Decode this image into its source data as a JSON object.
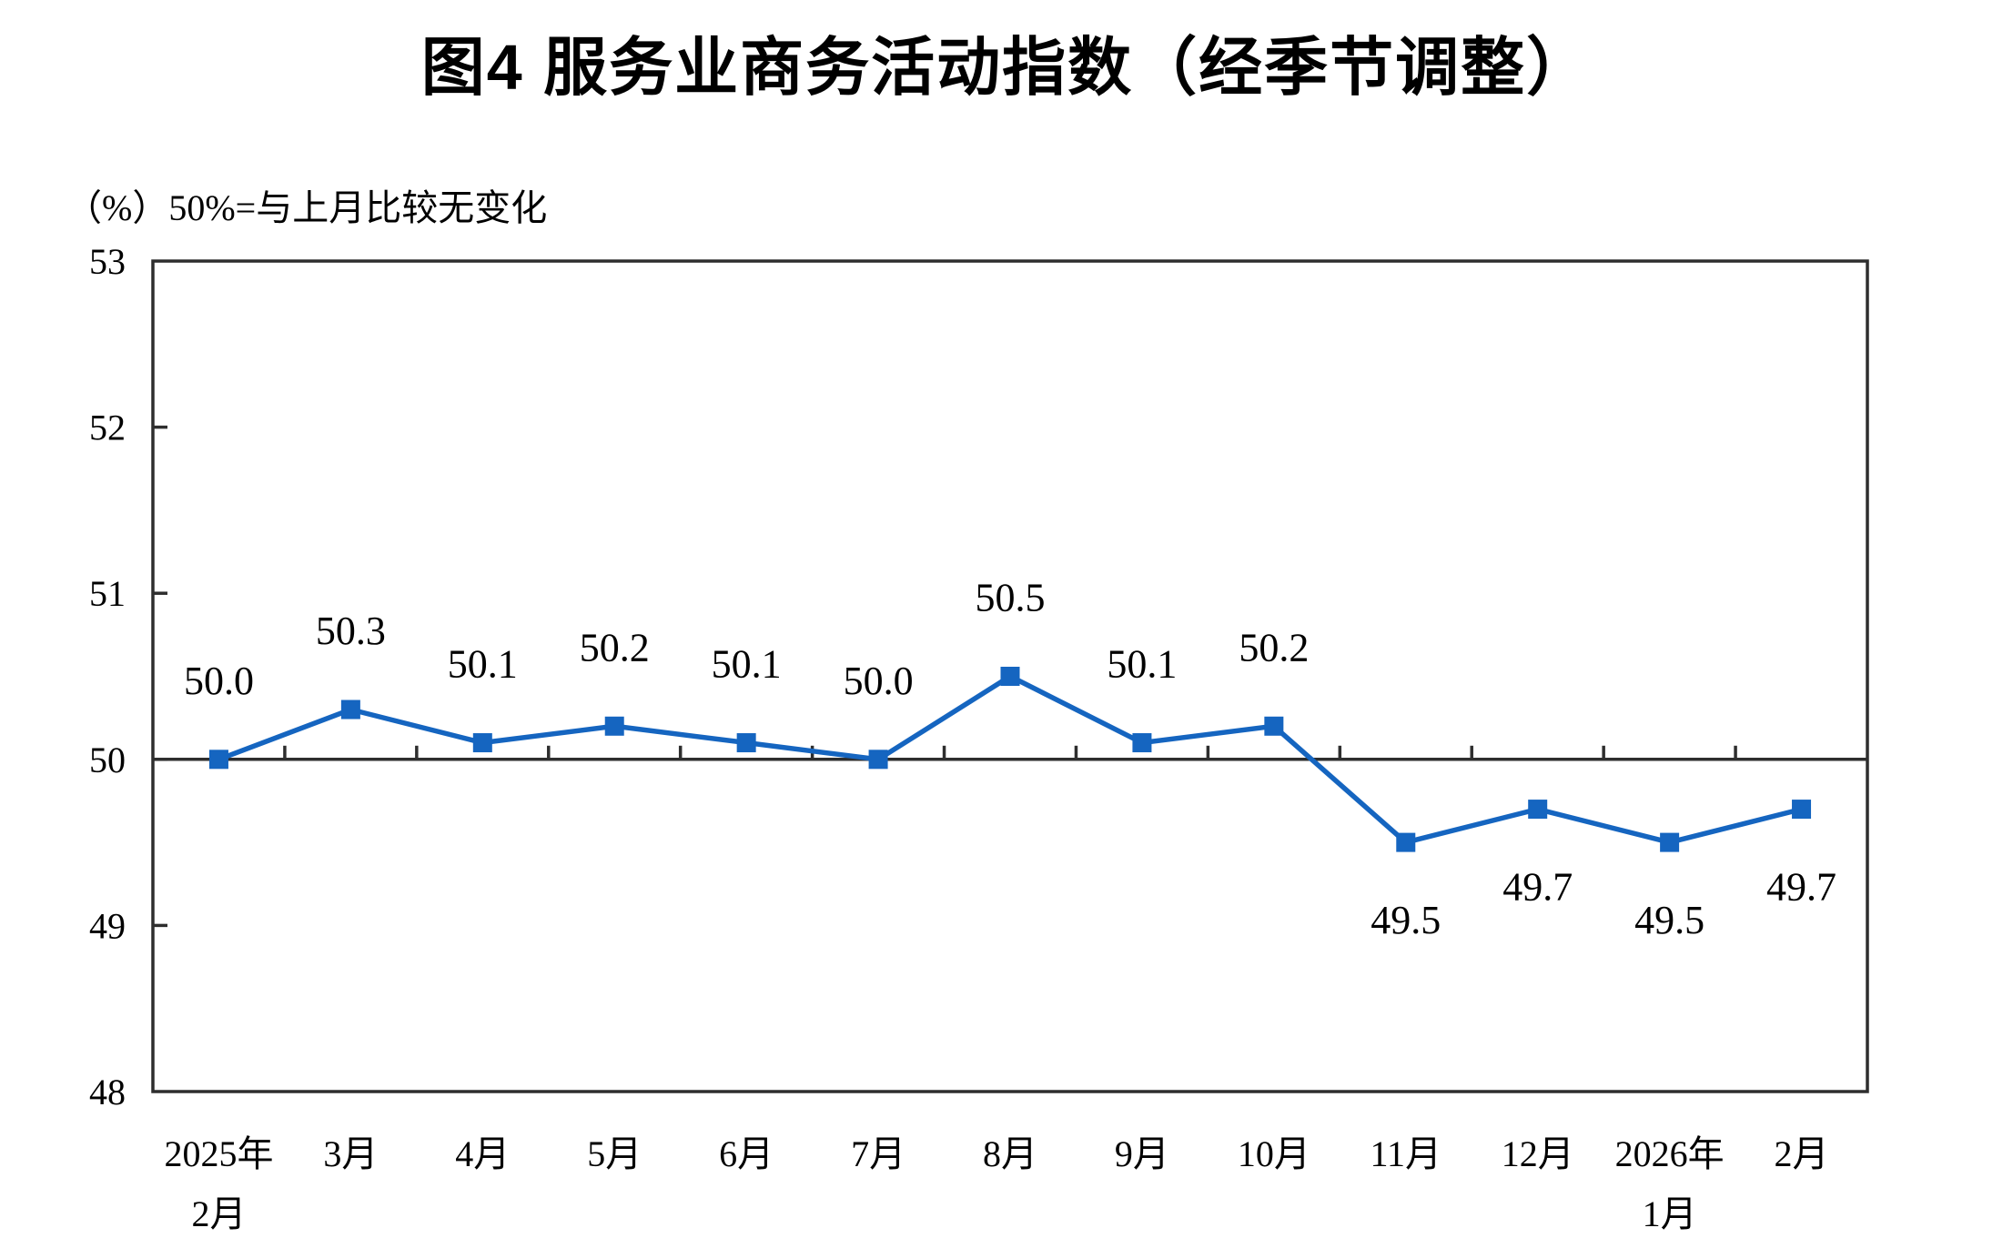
{
  "figure": {
    "title": "图4 服务业商务活动指数（经季节调整）",
    "unit_note": "（%）50%=与上月比较无变化"
  },
  "chart_data": {
    "type": "line",
    "title": "图4 服务业商务活动指数（经季节调整）",
    "unit_label": "（%）50%=与上月比较无变化",
    "categories": [
      [
        "2025年",
        "2月"
      ],
      [
        "3月"
      ],
      [
        "4月"
      ],
      [
        "5月"
      ],
      [
        "6月"
      ],
      [
        "7月"
      ],
      [
        "8月"
      ],
      [
        "9月"
      ],
      [
        "10月"
      ],
      [
        "11月"
      ],
      [
        "12月"
      ],
      [
        "2026年",
        "1月"
      ],
      [
        "2月"
      ]
    ],
    "values": [
      50.0,
      50.3,
      50.1,
      50.2,
      50.1,
      50.0,
      50.5,
      50.1,
      50.2,
      49.5,
      49.7,
      49.5,
      49.7
    ],
    "data_labels": [
      "50.0",
      "50.3",
      "50.1",
      "50.2",
      "50.1",
      "50.0",
      "50.5",
      "50.1",
      "50.2",
      "49.5",
      "49.7",
      "49.5",
      "49.7"
    ],
    "series_name": "服务业商务活动指数",
    "ylim": [
      48,
      53
    ],
    "yticks": [
      53,
      52,
      51,
      50,
      49,
      48
    ],
    "baseline_value": 50,
    "grid": false,
    "legend": "none",
    "colors": {
      "series": "#1565C0",
      "axis": "#2E2E2E",
      "text": "#000000",
      "background": "#FFFFFF"
    }
  }
}
